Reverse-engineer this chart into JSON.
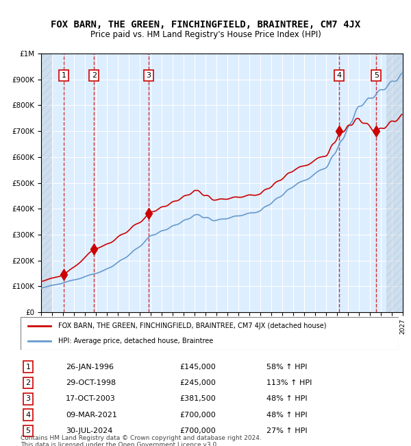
{
  "title": "FOX BARN, THE GREEN, FINCHINGFIELD, BRAINTREE, CM7 4JX",
  "subtitle": "Price paid vs. HM Land Registry's House Price Index (HPI)",
  "transactions": [
    {
      "num": 1,
      "date_label": "26-JAN-1996",
      "year": 1996.07,
      "price": 145000,
      "pct": "58% ↑ HPI"
    },
    {
      "num": 2,
      "date_label": "29-OCT-1998",
      "year": 1998.83,
      "price": 245000,
      "pct": "113% ↑ HPI"
    },
    {
      "num": 3,
      "date_label": "17-OCT-2003",
      "year": 2003.8,
      "price": 381500,
      "pct": "48% ↑ HPI"
    },
    {
      "num": 4,
      "date_label": "09-MAR-2021",
      "year": 2021.19,
      "price": 700000,
      "pct": "48% ↑ HPI"
    },
    {
      "num": 5,
      "date_label": "30-JUL-2024",
      "year": 2024.58,
      "price": 700000,
      "pct": "27% ↑ HPI"
    }
  ],
  "legend_label_red": "FOX BARN, THE GREEN, FINCHINGFIELD, BRAINTREE, CM7 4JX (detached house)",
  "legend_label_blue": "HPI: Average price, detached house, Braintree",
  "footer": "Contains HM Land Registry data © Crown copyright and database right 2024.\nThis data is licensed under the Open Government Licence v3.0.",
  "ylim": [
    0,
    1000000
  ],
  "xlim_start": 1994.0,
  "xlim_end": 2027.0,
  "red_color": "#cc0000",
  "blue_color": "#6699cc",
  "hatch_color": "#c8d8e8",
  "bg_color": "#ddeeff",
  "grid_color": "#ffffff",
  "dashed_line_color": "#cc0000",
  "title_fontsize": 10,
  "subtitle_fontsize": 9,
  "axis_label_fontsize": 8
}
